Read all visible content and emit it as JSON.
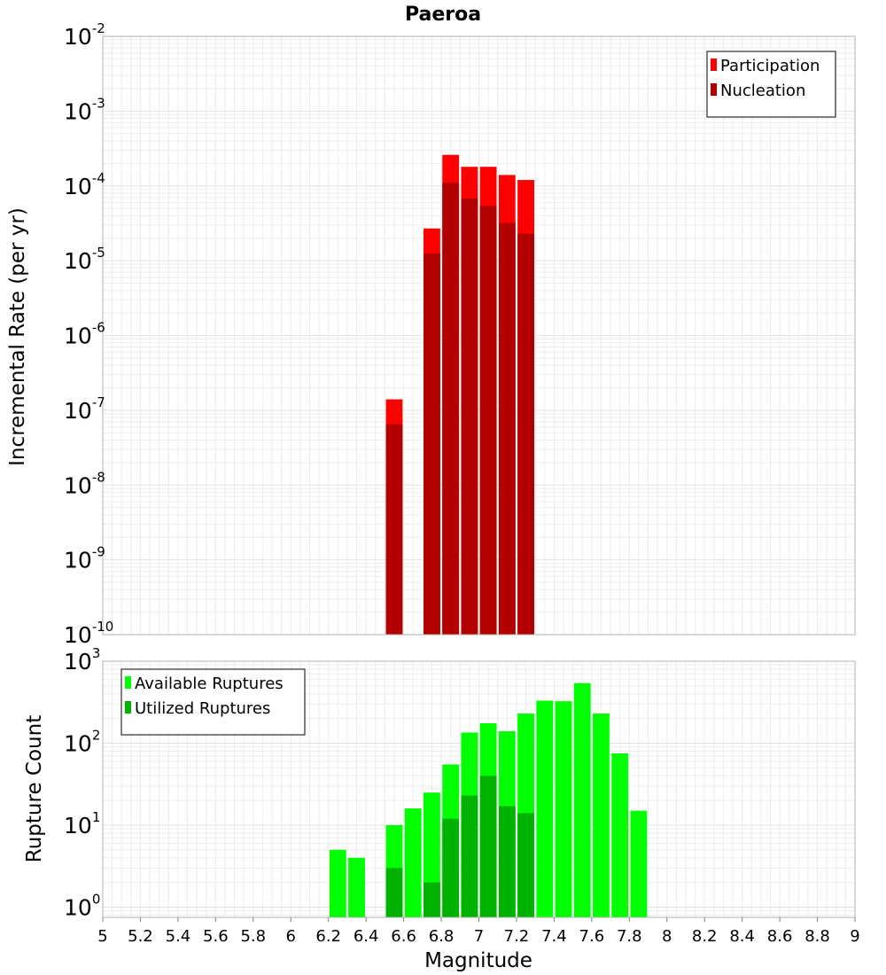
{
  "chart_data": [
    {
      "type": "bar",
      "title": "Paeroa",
      "xlabel": "",
      "ylabel": "Incremental Rate (per yr)",
      "yscale": "log",
      "xlim": [
        5,
        9
      ],
      "ylim": [
        1e-10,
        0.01
      ],
      "bin_width": 0.1,
      "legend_position": "top-right",
      "grid": true,
      "y_tick_base": "10",
      "y_tick_exponents": [
        "-2",
        "-3",
        "-4",
        "-5",
        "-6",
        "-7",
        "-8",
        "-9",
        "-10"
      ],
      "series": [
        {
          "name": "Participation",
          "color": "#ff0000",
          "x": [
            6.55,
            6.75,
            6.85,
            6.95,
            7.05,
            7.15,
            7.25
          ],
          "values": [
            1.4e-07,
            2.7e-05,
            0.00026,
            0.00018,
            0.00018,
            0.00014,
            0.00012
          ]
        },
        {
          "name": "Nucleation",
          "color": "#b20000",
          "x": [
            6.55,
            6.75,
            6.85,
            6.95,
            7.05,
            7.15,
            7.25
          ],
          "values": [
            6.5e-08,
            1.25e-05,
            0.00011,
            6.8e-05,
            5.4e-05,
            3.2e-05,
            2.3e-05
          ]
        }
      ]
    },
    {
      "type": "bar",
      "title": "",
      "xlabel": "Magnitude",
      "ylabel": "Rupture Count",
      "yscale": "log",
      "xlim": [
        5,
        9
      ],
      "ylim": [
        0.75,
        1000
      ],
      "bin_width": 0.1,
      "legend_position": "top-left",
      "grid": true,
      "y_tick_base": "10",
      "y_tick_exponents": [
        "3",
        "2",
        "1",
        "0"
      ],
      "x_ticks": [
        "5",
        "5.2",
        "5.4",
        "5.6",
        "5.8",
        "6",
        "6.2",
        "6.4",
        "6.6",
        "6.8",
        "7",
        "7.2",
        "7.4",
        "7.6",
        "7.8",
        "8",
        "8.2",
        "8.4",
        "8.6",
        "8.8",
        "9"
      ],
      "series": [
        {
          "name": "Available Ruptures",
          "color": "#00ff00",
          "x": [
            6.25,
            6.35,
            6.55,
            6.65,
            6.75,
            6.85,
            6.95,
            7.05,
            7.15,
            7.25,
            7.35,
            7.45,
            7.55,
            7.65,
            7.75,
            7.85
          ],
          "values": [
            5,
            4,
            10,
            16,
            25,
            55,
            135,
            175,
            140,
            230,
            330,
            325,
            540,
            230,
            75,
            15
          ]
        },
        {
          "name": "Utilized Ruptures",
          "color": "#00b200",
          "x": [
            6.55,
            6.75,
            6.85,
            6.95,
            7.05,
            7.15,
            7.25
          ],
          "values": [
            3,
            2,
            12,
            23,
            40,
            17,
            14
          ]
        }
      ]
    }
  ]
}
